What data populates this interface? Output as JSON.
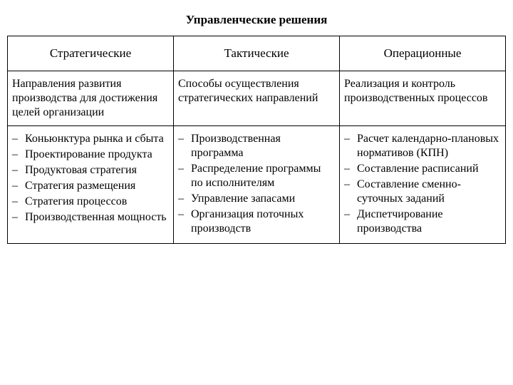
{
  "title": "Управленческие решения",
  "columns": [
    {
      "header": "Стратегические",
      "description": "Направления развития производства для достижения целей организации",
      "items": [
        "Коньюнктура рынка и сбыта",
        "Проектирование продукта",
        "Продуктовая стратегия",
        "Стратегия размещения",
        "Стратегия процессов",
        "Производственная мощность"
      ]
    },
    {
      "header": "Тактические",
      "description": "Способы осуществления стратегических направлений",
      "items": [
        "Производственная программа",
        "Распределение программы по исполнителям",
        "Управление запасами",
        "Организация поточных производств"
      ]
    },
    {
      "header": "Операционные",
      "description": "Реализация и контроль производственных процессов",
      "items": [
        "Расчет календарно-плановых нормативов (КПН)",
        "Составление расписаний",
        "Составление сменно-суточных заданий",
        "Диспетчирование производства"
      ]
    }
  ],
  "dash": "–"
}
